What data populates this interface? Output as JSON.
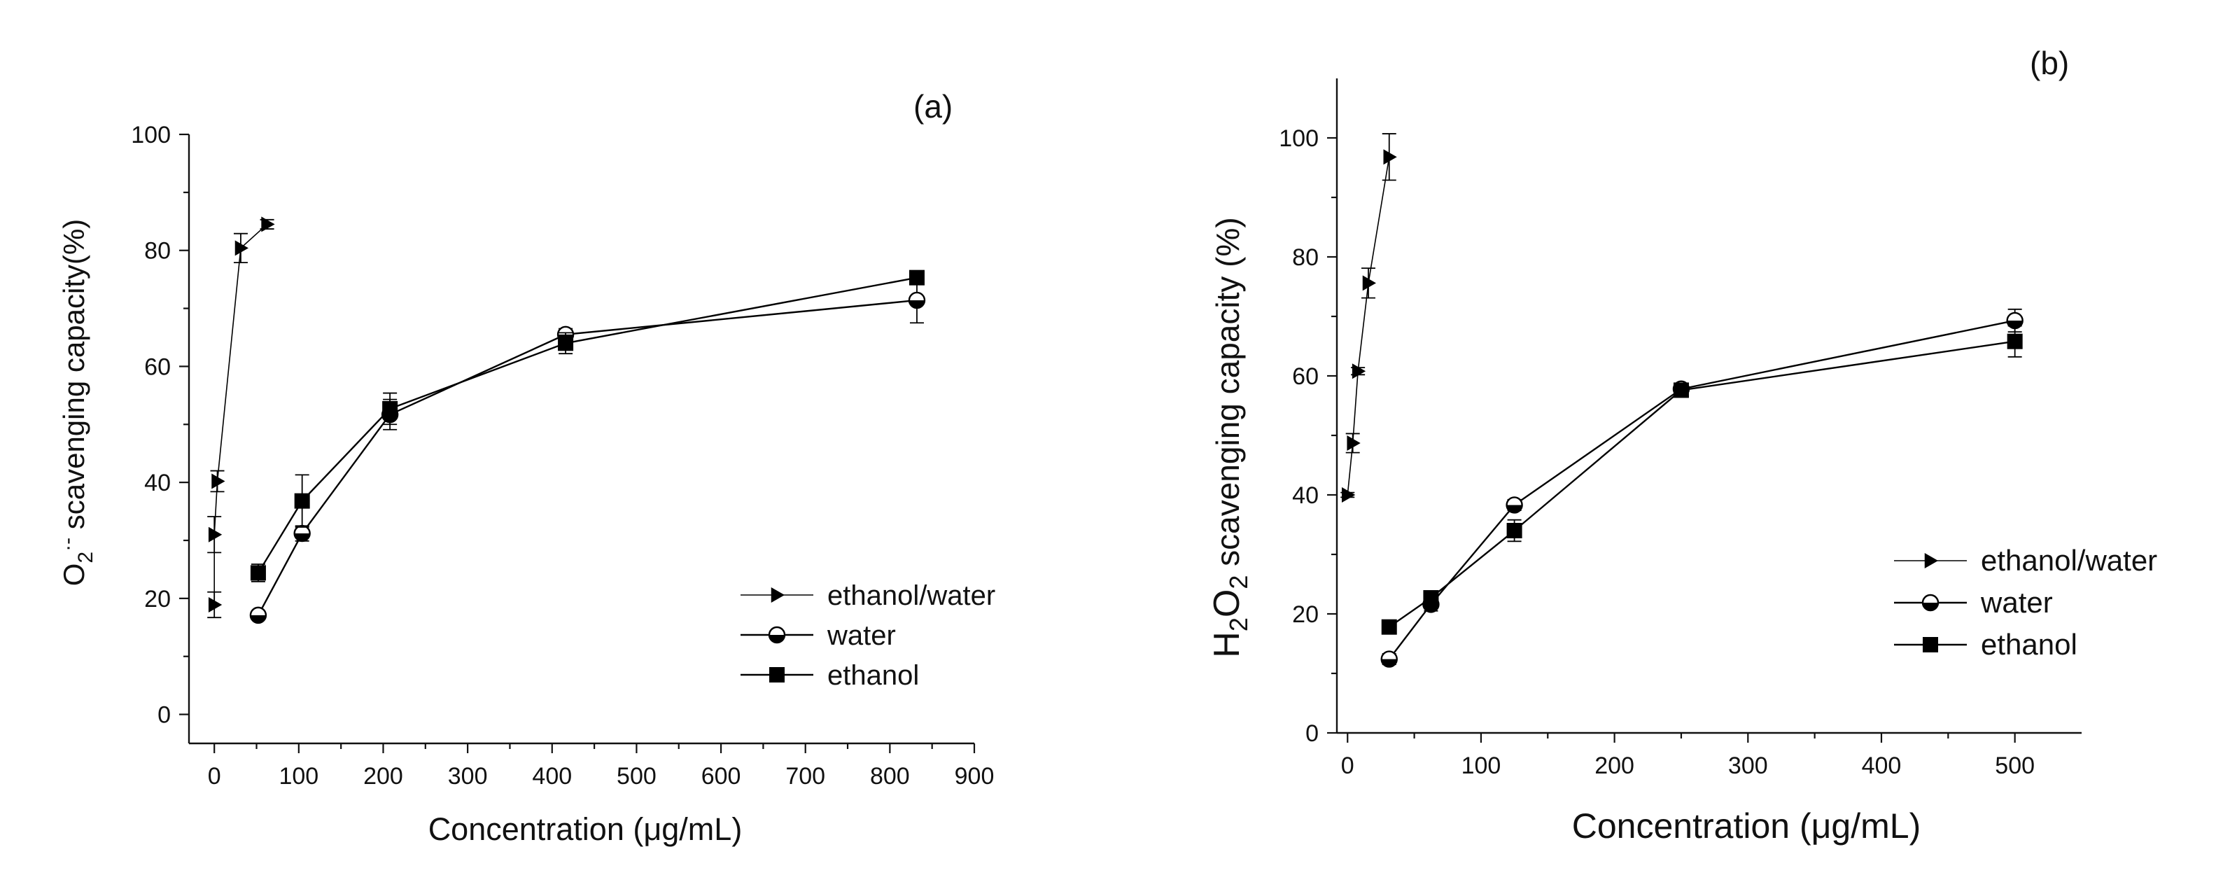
{
  "chart_data": [
    {
      "type": "line",
      "panel_label": "(a)",
      "xlabel": "Concentration (μg/mL)",
      "ylabel_parts": {
        "main": "O",
        "sub": "2",
        "sup": "·-",
        "rest": " scavenging capacity(%)"
      },
      "xlim": [
        -30,
        900
      ],
      "ylim": [
        -5,
        100
      ],
      "xticks": [
        0,
        100,
        200,
        300,
        400,
        500,
        600,
        700,
        800,
        900
      ],
      "yticks": [
        0,
        20,
        40,
        60,
        80,
        100
      ],
      "xtick_labels": [
        "0",
        "100",
        "200",
        "300",
        "400",
        "500",
        "600",
        "700",
        "800",
        "900"
      ],
      "ytick_labels": [
        "0",
        "20",
        "40",
        "60",
        "80",
        "100"
      ],
      "series": [
        {
          "name": "ethanol/water",
          "marker": "triangle-right",
          "x": [
            0,
            0,
            3.6,
            31.3,
            62.5
          ],
          "y": [
            18.9,
            31.0,
            40.2,
            80.4,
            84.5
          ],
          "err": [
            2.2,
            3.1,
            1.8,
            2.5,
            0.8
          ]
        },
        {
          "name": "water",
          "marker": "half-circle",
          "x": [
            52,
            104,
            208,
            416,
            832
          ],
          "y": [
            17.1,
            31.2,
            51.7,
            65.5,
            71.4
          ],
          "err": [
            0.7,
            1.3,
            2.6,
            1.0,
            3.9
          ]
        },
        {
          "name": "ethanol",
          "marker": "square",
          "x": [
            52,
            104,
            208,
            416,
            832
          ],
          "y": [
            24.4,
            36.8,
            52.7,
            64.0,
            75.3
          ],
          "err": [
            1.5,
            4.5,
            2.7,
            1.8,
            1.1
          ]
        }
      ],
      "legend": [
        "ethanol/water",
        "water",
        "ethanol"
      ]
    },
    {
      "type": "line",
      "panel_label": "(b)",
      "xlabel": "Concentration (μg/mL)",
      "ylabel_parts": {
        "p1": "H",
        "s1": "2",
        "p2": "O",
        "s2": "2",
        "rest": "  scavenging capacity (%)"
      },
      "xlim": [
        -8,
        550
      ],
      "ylim": [
        0,
        110
      ],
      "xticks": [
        0,
        100,
        200,
        300,
        400,
        500
      ],
      "yticks": [
        0,
        20,
        40,
        60,
        80,
        100
      ],
      "xtick_labels": [
        "0",
        "100",
        "200",
        "300",
        "400",
        "500"
      ],
      "ytick_labels": [
        "0",
        "20",
        "40",
        "60",
        "80",
        "100"
      ],
      "series": [
        {
          "name": "ethanol/water",
          "marker": "triangle-right",
          "x": [
            0,
            3.9,
            7.8,
            15.6,
            31.2
          ],
          "y": [
            40.0,
            48.7,
            60.8,
            75.6,
            96.8
          ],
          "err": [
            0.4,
            1.6,
            0.6,
            2.5,
            3.9
          ]
        },
        {
          "name": "water",
          "marker": "half-circle",
          "x": [
            31.2,
            62.5,
            125,
            250,
            500
          ],
          "y": [
            12.4,
            21.6,
            38.3,
            57.8,
            69.3
          ],
          "err": [
            0.9,
            1.1,
            0.9,
            0.8,
            1.9
          ]
        },
        {
          "name": "ethanol",
          "marker": "square",
          "x": [
            31.2,
            62.5,
            125,
            250,
            500
          ],
          "y": [
            17.8,
            22.7,
            34.0,
            57.6,
            65.8
          ],
          "err": [
            0.6,
            0.8,
            1.8,
            0.9,
            2.6
          ]
        }
      ],
      "legend": [
        "ethanol/water",
        "water",
        "ethanol"
      ]
    }
  ]
}
